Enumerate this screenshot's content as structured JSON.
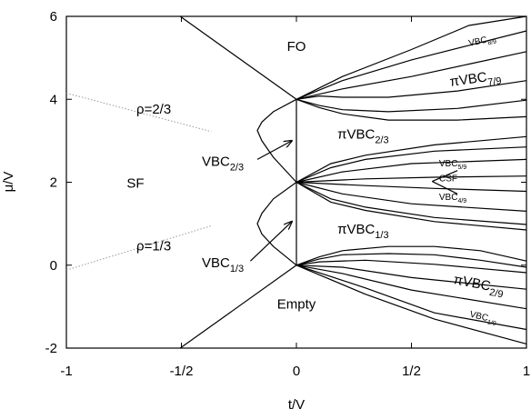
{
  "chart_data": {
    "type": "line",
    "xlabel": "t/V",
    "ylabel": "μ/V",
    "xlim": [
      -1,
      1
    ],
    "ylim": [
      -2,
      6
    ],
    "xticks": [
      {
        "value": -1,
        "label": "-1"
      },
      {
        "value": -0.5,
        "label": "-1/2"
      },
      {
        "value": 0,
        "label": "0"
      },
      {
        "value": 0.5,
        "label": "1/2"
      },
      {
        "value": 1,
        "label": "1"
      }
    ],
    "yticks": [
      {
        "value": -2,
        "label": "-2"
      },
      {
        "value": 0,
        "label": "0"
      },
      {
        "value": 2,
        "label": "2"
      },
      {
        "value": 4,
        "label": "4"
      },
      {
        "value": 6,
        "label": "6"
      }
    ],
    "grid": false,
    "regions": [
      {
        "key": "FO",
        "main": "FO",
        "sub": "",
        "x": 0.0,
        "y": 5.17,
        "size": 15
      },
      {
        "key": "SF",
        "main": "SF",
        "sub": "",
        "x": -0.7,
        "y": 1.87,
        "size": 15
      },
      {
        "key": "Empty",
        "main": "Empty",
        "sub": "",
        "x": 0.0,
        "y": -1.05,
        "size": 15
      },
      {
        "key": "piVBC23",
        "main": "πVBC",
        "sub": "2/3",
        "x": 0.29,
        "y": 3.05,
        "size": 15
      },
      {
        "key": "piVBC13",
        "main": "πVBC",
        "sub": "1/3",
        "x": 0.29,
        "y": 0.76,
        "size": 15
      },
      {
        "key": "VBC23",
        "main": "VBC",
        "sub": "2/3",
        "x": -0.32,
        "y": 2.4,
        "size": 15
      },
      {
        "key": "VBC13",
        "main": "VBC",
        "sub": "1/3",
        "x": -0.32,
        "y": -0.05,
        "size": 15
      },
      {
        "key": "rho23",
        "main": "ρ=2/3",
        "sub": "",
        "x": -0.62,
        "y": 3.65,
        "size": 15
      },
      {
        "key": "rho13",
        "main": "ρ=1/3",
        "sub": "",
        "x": -0.62,
        "y": 0.36,
        "size": 15
      },
      {
        "key": "piVBC79",
        "main": "πVBC",
        "sub": "7/9",
        "x": 0.78,
        "y": 4.4,
        "size": 15,
        "rotate": -8
      },
      {
        "key": "piVBC29",
        "main": "πVBC",
        "sub": "2/9",
        "x": 0.79,
        "y": -0.56,
        "size": 15,
        "rotate": 11
      },
      {
        "key": "VBC89",
        "main": "VBC",
        "sub": "8/9",
        "x": 0.81,
        "y": 5.35,
        "size": 10,
        "rotate": -12
      },
      {
        "key": "VBC19",
        "main": "VBC",
        "sub": "1/9",
        "x": 0.81,
        "y": -1.32,
        "size": 10,
        "rotate": 13
      },
      {
        "key": "VBC59",
        "main": "VBC",
        "sub": "5/9",
        "x": 0.68,
        "y": 2.38,
        "size": 10
      },
      {
        "key": "CSF",
        "main": "CSF",
        "sub": "",
        "x": 0.66,
        "y": 2.02,
        "size": 10
      },
      {
        "key": "VBC49",
        "main": "VBC",
        "sub": "4/9",
        "x": 0.68,
        "y": 1.57,
        "size": 10
      }
    ],
    "phase_boundaries": [
      {
        "name": "sf-boundary-upper-left",
        "points": [
          [
            -0.505,
            6
          ],
          [
            0,
            4
          ]
        ]
      },
      {
        "name": "sf-boundary-lower-left",
        "points": [
          [
            -0.505,
            -2
          ],
          [
            0,
            0
          ]
        ]
      },
      {
        "name": "t-zero-line",
        "points": [
          [
            0,
            0
          ],
          [
            0,
            4
          ]
        ]
      },
      {
        "name": "lobe-upper-top",
        "points": [
          [
            0,
            4
          ],
          [
            -0.1,
            3.7
          ],
          [
            -0.15,
            3.45
          ],
          [
            -0.17,
            3.25
          ],
          [
            -0.15,
            3.0
          ],
          [
            -0.1,
            2.6
          ],
          [
            0,
            2
          ]
        ]
      },
      {
        "name": "lobe-lower",
        "points": [
          [
            0,
            2
          ],
          [
            -0.1,
            1.6
          ],
          [
            -0.15,
            1.25
          ],
          [
            -0.17,
            1.0
          ],
          [
            -0.15,
            0.75
          ],
          [
            -0.1,
            0.45
          ],
          [
            0,
            0
          ]
        ]
      },
      {
        "name": "fan-4-a",
        "points": [
          [
            0,
            4
          ],
          [
            0.2,
            4.55
          ],
          [
            0.5,
            5.2
          ],
          [
            0.75,
            5.78
          ],
          [
            1,
            6
          ]
        ]
      },
      {
        "name": "fan-4-b",
        "points": [
          [
            0,
            4
          ],
          [
            0.2,
            4.45
          ],
          [
            0.5,
            4.95
          ],
          [
            0.75,
            5.3
          ],
          [
            1,
            5.65
          ]
        ]
      },
      {
        "name": "fan-4-c",
        "points": [
          [
            0,
            4
          ],
          [
            0.2,
            4.25
          ],
          [
            0.5,
            4.55
          ],
          [
            0.75,
            4.85
          ],
          [
            1,
            5.15
          ]
        ]
      },
      {
        "name": "fan-4-d",
        "points": [
          [
            0,
            4
          ],
          [
            0.1,
            4.08
          ],
          [
            0.2,
            4.05
          ],
          [
            0.4,
            4.05
          ],
          [
            0.7,
            4.2
          ],
          [
            1,
            4.45
          ]
        ]
      },
      {
        "name": "fan-4-e",
        "points": [
          [
            0,
            4
          ],
          [
            0.1,
            3.85
          ],
          [
            0.2,
            3.75
          ],
          [
            0.4,
            3.7
          ],
          [
            0.7,
            3.78
          ],
          [
            1,
            3.98
          ]
        ]
      },
      {
        "name": "fan-4-f",
        "points": [
          [
            0,
            4
          ],
          [
            0.1,
            3.8
          ],
          [
            0.2,
            3.65
          ],
          [
            0.4,
            3.5
          ],
          [
            0.7,
            3.5
          ],
          [
            1,
            3.58
          ]
        ]
      },
      {
        "name": "fan-2-a",
        "points": [
          [
            0,
            2
          ],
          [
            0.15,
            2.45
          ],
          [
            0.3,
            2.65
          ],
          [
            0.6,
            2.9
          ],
          [
            1,
            3.1
          ]
        ]
      },
      {
        "name": "fan-2-b",
        "points": [
          [
            0,
            2
          ],
          [
            0.15,
            2.35
          ],
          [
            0.3,
            2.55
          ],
          [
            0.6,
            2.75
          ],
          [
            1,
            2.85
          ]
        ]
      },
      {
        "name": "fan-2-c",
        "points": [
          [
            0,
            2
          ],
          [
            0.2,
            2.25
          ],
          [
            0.5,
            2.45
          ],
          [
            1,
            2.55
          ]
        ]
      },
      {
        "name": "fan-2-d",
        "points": [
          [
            0,
            2
          ],
          [
            0.3,
            2.08
          ],
          [
            0.6,
            2.12
          ],
          [
            1,
            2.15
          ]
        ]
      },
      {
        "name": "fan-2-e",
        "points": [
          [
            0,
            2
          ],
          [
            0.3,
            1.92
          ],
          [
            0.6,
            1.85
          ],
          [
            1,
            1.78
          ]
        ]
      },
      {
        "name": "fan-2-f",
        "points": [
          [
            0,
            2
          ],
          [
            0.2,
            1.72
          ],
          [
            0.5,
            1.48
          ],
          [
            1,
            1.3
          ]
        ]
      },
      {
        "name": "fan-2-g",
        "points": [
          [
            0,
            2
          ],
          [
            0.15,
            1.6
          ],
          [
            0.3,
            1.4
          ],
          [
            0.6,
            1.15
          ],
          [
            1,
            0.98
          ]
        ]
      },
      {
        "name": "fan-2-h",
        "points": [
          [
            0,
            2
          ],
          [
            0.15,
            1.52
          ],
          [
            0.3,
            1.32
          ],
          [
            0.6,
            1.05
          ],
          [
            1,
            0.85
          ]
        ]
      },
      {
        "name": "csf-wedge-upper",
        "points": [
          [
            0.59,
            2.02
          ],
          [
            0.7,
            2.28
          ]
        ]
      },
      {
        "name": "csf-wedge-lower",
        "points": [
          [
            0.59,
            2.02
          ],
          [
            0.7,
            1.72
          ]
        ]
      },
      {
        "name": "fan-0-a",
        "points": [
          [
            0,
            0
          ],
          [
            0.1,
            0.2
          ],
          [
            0.2,
            0.35
          ],
          [
            0.4,
            0.45
          ],
          [
            0.6,
            0.45
          ],
          [
            0.8,
            0.35
          ],
          [
            1,
            0.1
          ]
        ]
      },
      {
        "name": "fan-0-b",
        "points": [
          [
            0,
            0
          ],
          [
            0.1,
            0.15
          ],
          [
            0.2,
            0.25
          ],
          [
            0.4,
            0.28
          ],
          [
            0.6,
            0.25
          ],
          [
            0.8,
            0.12
          ],
          [
            1,
            -0.05
          ]
        ]
      },
      {
        "name": "fan-0-c",
        "points": [
          [
            0,
            0
          ],
          [
            0.1,
            0.08
          ],
          [
            0.3,
            0.12
          ],
          [
            0.6,
            0.02
          ],
          [
            1,
            -0.18
          ]
        ]
      },
      {
        "name": "fan-0-d",
        "points": [
          [
            0,
            0
          ],
          [
            0.2,
            -0.05
          ],
          [
            0.5,
            -0.3
          ],
          [
            1,
            -0.58
          ]
        ]
      },
      {
        "name": "fan-0-e",
        "points": [
          [
            0,
            0
          ],
          [
            0.2,
            -0.2
          ],
          [
            0.5,
            -0.6
          ],
          [
            1,
            -1.05
          ]
        ]
      },
      {
        "name": "fan-0-f",
        "points": [
          [
            0,
            0
          ],
          [
            0.3,
            -0.55
          ],
          [
            0.6,
            -1.15
          ],
          [
            1,
            -1.55
          ]
        ]
      },
      {
        "name": "fan-0-g",
        "points": [
          [
            0,
            0
          ],
          [
            0.3,
            -0.7
          ],
          [
            0.6,
            -1.3
          ],
          [
            1,
            -1.9
          ]
        ]
      }
    ],
    "density_lines": [
      {
        "name": "rho-2-3-line",
        "points": [
          [
            -1,
            4.15
          ],
          [
            -0.37,
            3.22
          ]
        ]
      },
      {
        "name": "rho-1-3-line",
        "points": [
          [
            -1,
            -0.12
          ],
          [
            -0.37,
            0.95
          ]
        ]
      }
    ],
    "arrows": [
      {
        "name": "vbc-2-3-arrow",
        "from": [
          -0.17,
          2.55
        ],
        "to": [
          -0.02,
          3.0
        ]
      },
      {
        "name": "vbc-1-3-arrow",
        "from": [
          -0.2,
          0.1
        ],
        "to": [
          -0.02,
          1.05
        ]
      }
    ]
  }
}
